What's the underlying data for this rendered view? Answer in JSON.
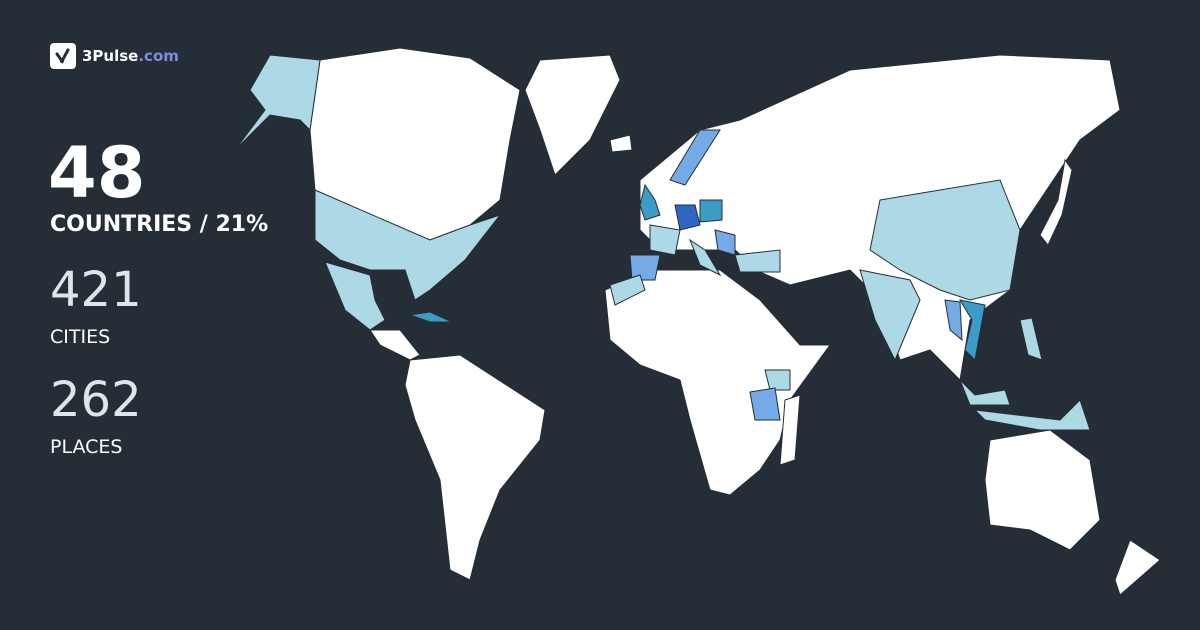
{
  "brand": {
    "name": "3Pulse",
    "domain": ".com",
    "icon": "checkmark-pulse-icon"
  },
  "stats": {
    "countries": {
      "value": "48",
      "label": "COUNTRIES / 21%"
    },
    "cities": {
      "value": "421",
      "label": "CITIES"
    },
    "places": {
      "value": "262",
      "label": "PLACES"
    }
  },
  "colors": {
    "background": "#252e37",
    "unvisited": "#ffffff",
    "level1": "#add8e6",
    "level2": "#74aae6",
    "level3": "#3b9cc6",
    "level4": "#2f68c4"
  },
  "visited_countries": [
    {
      "name": "Alaska (USA)",
      "level": 1
    },
    {
      "name": "United States",
      "level": 1
    },
    {
      "name": "Mexico",
      "level": 1
    },
    {
      "name": "Cuba",
      "level": 3
    },
    {
      "name": "United Kingdom",
      "level": 3
    },
    {
      "name": "Germany",
      "level": 4
    },
    {
      "name": "Poland",
      "level": 3
    },
    {
      "name": "France",
      "level": 1
    },
    {
      "name": "Spain",
      "level": 2
    },
    {
      "name": "Norway",
      "level": 2
    },
    {
      "name": "Italy",
      "level": 1
    },
    {
      "name": "Balkans",
      "level": 2
    },
    {
      "name": "Turkey",
      "level": 1
    },
    {
      "name": "Morocco",
      "level": 1
    },
    {
      "name": "Kenya",
      "level": 1
    },
    {
      "name": "Tanzania",
      "level": 2
    },
    {
      "name": "China",
      "level": 1
    },
    {
      "name": "India",
      "level": 1
    },
    {
      "name": "Vietnam",
      "level": 3
    },
    {
      "name": "Thailand",
      "level": 2
    },
    {
      "name": "Philippines",
      "level": 1
    },
    {
      "name": "Malaysia",
      "level": 1
    },
    {
      "name": "Indonesia",
      "level": 1
    }
  ]
}
